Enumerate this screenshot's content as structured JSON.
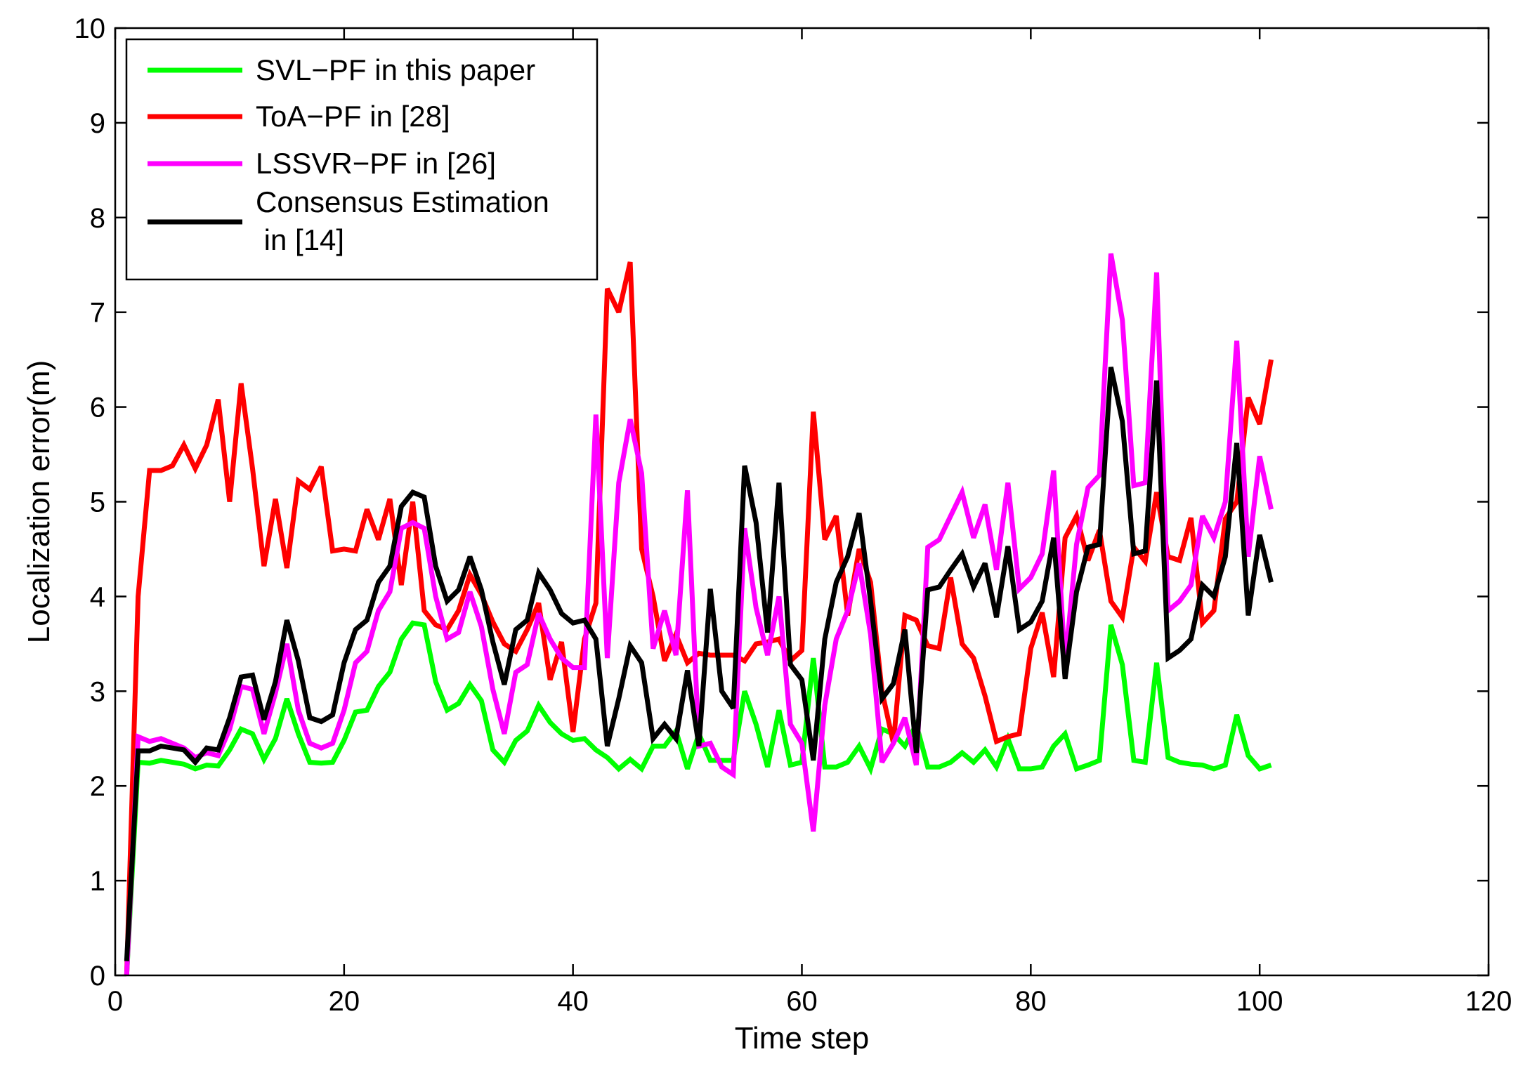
{
  "chart_data": {
    "type": "line",
    "title": "",
    "xlabel": "Time step",
    "ylabel": "Localization error(m)",
    "xlim": [
      0,
      120
    ],
    "ylim": [
      0,
      10
    ],
    "xticks": [
      0,
      20,
      40,
      60,
      80,
      100,
      120
    ],
    "yticks": [
      0,
      1,
      2,
      3,
      4,
      5,
      6,
      7,
      8,
      9,
      10
    ],
    "xtick_labels": [
      "0",
      "20",
      "40",
      "60",
      "80",
      "100",
      "120"
    ],
    "ytick_labels": [
      "0",
      "1",
      "2",
      "3",
      "4",
      "5",
      "6",
      "7",
      "8",
      "9",
      "10"
    ],
    "grid": false,
    "legend_position": "top-left",
    "x": [
      1,
      2,
      3,
      4,
      5,
      6,
      7,
      8,
      9,
      10,
      11,
      12,
      13,
      14,
      15,
      16,
      17,
      18,
      19,
      20,
      21,
      22,
      23,
      24,
      25,
      26,
      27,
      28,
      29,
      30,
      31,
      32,
      33,
      34,
      35,
      36,
      37,
      38,
      39,
      40,
      41,
      42,
      43,
      44,
      45,
      46,
      47,
      48,
      49,
      50,
      51,
      52,
      53,
      54,
      55,
      56,
      57,
      58,
      59,
      60,
      61,
      62,
      63,
      64,
      65,
      66,
      67,
      68,
      69,
      70,
      71,
      72,
      73,
      74,
      75,
      76,
      77,
      78,
      79,
      80,
      81,
      82,
      83,
      84,
      85,
      86,
      87,
      88,
      89,
      90,
      91,
      92,
      93,
      94,
      95,
      96,
      97,
      98,
      99,
      100,
      101
    ],
    "series": [
      {
        "name": "SVL−PF in this paper",
        "color": "#00ff00",
        "values": [
          0.0,
          2.25,
          2.24,
          2.27,
          2.25,
          2.23,
          2.18,
          2.22,
          2.21,
          2.38,
          2.6,
          2.55,
          2.28,
          2.5,
          2.92,
          2.55,
          2.25,
          2.24,
          2.25,
          2.48,
          2.78,
          2.8,
          3.05,
          3.2,
          3.55,
          3.72,
          3.7,
          3.1,
          2.8,
          2.87,
          3.07,
          2.9,
          2.38,
          2.25,
          2.48,
          2.58,
          2.85,
          2.67,
          2.55,
          2.48,
          2.5,
          2.38,
          2.3,
          2.18,
          2.28,
          2.18,
          2.42,
          2.42,
          2.58,
          2.18,
          2.55,
          2.27,
          2.27,
          2.27,
          3.0,
          2.65,
          2.2,
          2.8,
          2.22,
          2.25,
          3.35,
          2.2,
          2.2,
          2.25,
          2.42,
          2.18,
          2.6,
          2.55,
          2.42,
          2.65,
          2.2,
          2.2,
          2.25,
          2.35,
          2.25,
          2.38,
          2.2,
          2.5,
          2.18,
          2.18,
          2.2,
          2.42,
          2.55,
          2.18,
          2.22,
          2.27,
          3.7,
          3.28,
          2.27,
          2.25,
          3.3,
          2.3,
          2.25,
          2.23,
          2.22,
          2.18,
          2.22,
          2.75,
          2.32,
          2.18,
          2.22
        ]
      },
      {
        "name": "ToA−PF in [28]",
        "color": "#ff0000",
        "values": [
          0.0,
          4.0,
          5.33,
          5.33,
          5.38,
          5.6,
          5.35,
          5.6,
          6.08,
          5.0,
          6.25,
          5.35,
          4.32,
          5.03,
          4.3,
          5.22,
          5.13,
          5.37,
          4.48,
          4.5,
          4.48,
          4.92,
          4.6,
          5.03,
          4.12,
          5.0,
          3.85,
          3.7,
          3.65,
          3.85,
          4.23,
          4.02,
          3.73,
          3.5,
          3.42,
          3.65,
          3.93,
          3.12,
          3.52,
          2.57,
          3.55,
          3.93,
          7.25,
          7.0,
          7.53,
          4.5,
          4.0,
          3.32,
          3.6,
          3.3,
          3.4,
          3.38,
          3.38,
          3.38,
          3.32,
          3.5,
          3.52,
          3.55,
          3.32,
          3.43,
          5.95,
          4.6,
          4.85,
          3.8,
          4.5,
          4.15,
          3.0,
          2.45,
          3.8,
          3.75,
          3.48,
          3.45,
          4.2,
          3.5,
          3.35,
          2.95,
          2.47,
          2.52,
          2.55,
          3.45,
          3.83,
          3.15,
          4.62,
          4.85,
          4.38,
          4.7,
          3.95,
          3.78,
          4.52,
          4.37,
          5.1,
          4.42,
          4.38,
          4.83,
          3.72,
          3.85,
          4.82,
          5.0,
          6.1,
          5.82,
          6.5
        ]
      },
      {
        "name": "LSSVR−PF in [26]",
        "color": "#ff00ff",
        "values": [
          0.0,
          2.52,
          2.47,
          2.5,
          2.45,
          2.4,
          2.3,
          2.35,
          2.32,
          2.6,
          3.05,
          3.02,
          2.55,
          2.98,
          3.5,
          2.8,
          2.45,
          2.4,
          2.45,
          2.8,
          3.3,
          3.42,
          3.85,
          4.05,
          4.72,
          4.78,
          4.72,
          4.0,
          3.55,
          3.62,
          4.05,
          3.68,
          3.02,
          2.55,
          3.2,
          3.28,
          3.82,
          3.55,
          3.35,
          3.25,
          3.25,
          5.92,
          3.35,
          5.2,
          5.87,
          5.3,
          3.45,
          3.85,
          3.38,
          5.12,
          2.42,
          2.45,
          2.2,
          2.12,
          4.72,
          3.88,
          3.38,
          4.0,
          2.65,
          2.45,
          1.52,
          2.85,
          3.55,
          3.85,
          4.35,
          3.6,
          2.25,
          2.45,
          2.72,
          2.22,
          4.52,
          4.6,
          4.85,
          5.1,
          4.62,
          4.97,
          4.28,
          5.2,
          4.08,
          4.2,
          4.45,
          5.33,
          3.28,
          4.55,
          5.15,
          5.28,
          7.62,
          6.92,
          5.17,
          5.2,
          7.42,
          3.85,
          3.95,
          4.12,
          4.85,
          4.62,
          5.0,
          6.7,
          4.42,
          5.48,
          4.92
        ]
      },
      {
        "name": "Consensus Estimation\n in [14]",
        "color": "#000000",
        "values": [
          0.15,
          2.37,
          2.37,
          2.42,
          2.4,
          2.38,
          2.25,
          2.4,
          2.38,
          2.72,
          3.15,
          3.17,
          2.7,
          3.1,
          3.75,
          3.32,
          2.72,
          2.68,
          2.75,
          3.3,
          3.65,
          3.75,
          4.15,
          4.32,
          4.95,
          5.1,
          5.05,
          4.32,
          3.95,
          4.07,
          4.42,
          4.07,
          3.52,
          3.07,
          3.65,
          3.75,
          4.25,
          4.07,
          3.82,
          3.72,
          3.75,
          3.55,
          2.42,
          2.92,
          3.48,
          3.3,
          2.5,
          2.65,
          2.5,
          3.22,
          2.42,
          4.08,
          3.0,
          2.82,
          5.38,
          4.78,
          3.62,
          5.2,
          3.28,
          3.12,
          2.27,
          3.55,
          4.15,
          4.42,
          4.88,
          3.95,
          2.92,
          3.08,
          3.65,
          2.35,
          4.07,
          4.1,
          4.28,
          4.45,
          4.1,
          4.35,
          3.78,
          4.53,
          3.65,
          3.73,
          3.95,
          4.62,
          3.13,
          4.05,
          4.52,
          4.55,
          6.42,
          5.85,
          4.45,
          4.48,
          6.28,
          3.35,
          3.43,
          3.55,
          4.12,
          4.0,
          4.42,
          5.62,
          3.8,
          4.65,
          4.15
        ]
      }
    ]
  }
}
